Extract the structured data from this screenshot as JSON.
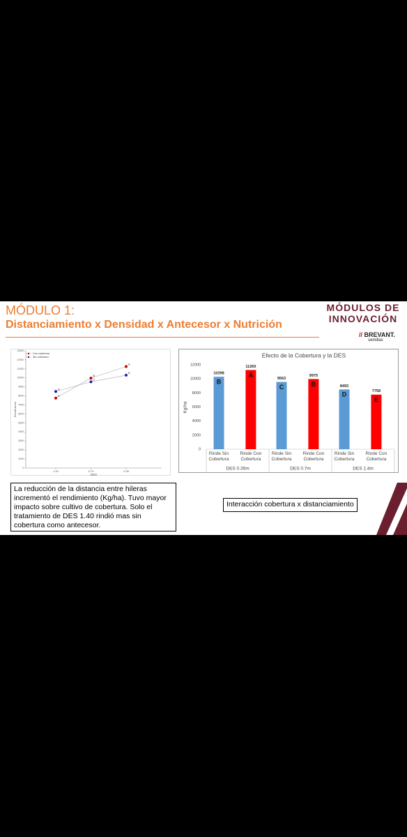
{
  "header": {
    "title": "MÓDULO 1:",
    "subtitle": "Distanciamiento x Densidad x Antecesor x Nutrición"
  },
  "logo": {
    "line1": "MÓDULOS DE",
    "line2": "INNOVACIÓN",
    "brand": "BREVANT.",
    "tagline": "semillas"
  },
  "chart_data": [
    {
      "type": "line",
      "x_label": "DES",
      "y_label": "Rendimiento",
      "categories": [
        "1.40",
        "0.70",
        "0.35"
      ],
      "series": [
        {
          "name": "Con cobertura",
          "color": "#c00000",
          "values": [
            7758,
            9975,
            11260
          ],
          "letters": [
            "E",
            "B",
            "A"
          ]
        },
        {
          "name": "Sin cobertura",
          "color": "#1f1fb4",
          "values": [
            8493,
            9563,
            10298
          ],
          "letters": [
            "D",
            "C",
            "B"
          ]
        }
      ],
      "ylim": [
        0,
        13000
      ],
      "yticks": [
        0,
        1000,
        2000,
        3000,
        4000,
        5000,
        6000,
        7000,
        8000,
        9000,
        10000,
        11000,
        12000,
        13000
      ],
      "legend": "top-left"
    },
    {
      "type": "bar",
      "title": "Efecto de la Cobertura y la DES",
      "y_label": "Kg/ha",
      "categories": [
        "DES 0.35m",
        "DES 0.7m",
        "DES 1.4m"
      ],
      "series": [
        {
          "name": "Rinde Sin Cobertura",
          "color": "#5b9bd5",
          "values": [
            10298,
            9563,
            8493
          ],
          "letters": [
            "B",
            "C",
            "D"
          ]
        },
        {
          "name": "Rinde Con Cobertura",
          "color": "#ff0000",
          "values": [
            11260,
            9975,
            7758
          ],
          "letters": [
            "A",
            "B",
            "E"
          ]
        }
      ],
      "ylim": [
        0,
        12000
      ],
      "yticks": [
        0,
        2000,
        4000,
        6000,
        8000,
        10000,
        12000
      ],
      "grid": false
    }
  ],
  "notes": {
    "left": "La reducción de la distancia entre hileras incrementó el rendimiento (Kg/ha). Tuvo mayor impacto sobre cultivo de cobertura. Solo el tratamiento de DES 1.40 rindió mas sin cobertura como antecesor.",
    "right": "Interacción cobertura x distanciamiento"
  }
}
